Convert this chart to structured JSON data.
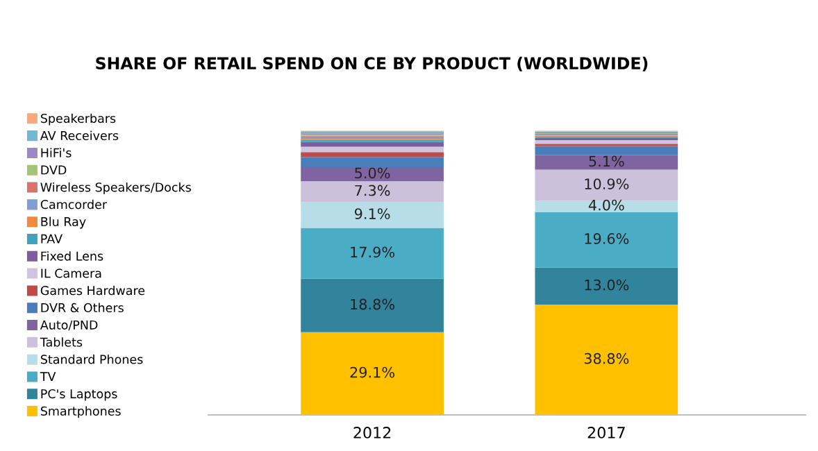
{
  "chart_data": {
    "type": "bar",
    "stacked": true,
    "title": "SHARE OF RETAIL SPEND ON CE BY PRODUCT (WORLDWIDE)",
    "categories": [
      "2012",
      "2017"
    ],
    "legend": "left",
    "grid": false,
    "series": [
      {
        "name": "Smartphones",
        "color": "#ffc000",
        "values": [
          29.1,
          38.8
        ],
        "value_labels": [
          "29.1%",
          "38.8%"
        ]
      },
      {
        "name": "PC's Laptops",
        "color": "#31849b",
        "values": [
          18.8,
          13.0
        ],
        "value_labels": [
          "18.8%",
          "13.0%"
        ]
      },
      {
        "name": "TV",
        "color": "#4bacc6",
        "values": [
          17.9,
          19.6
        ],
        "value_labels": [
          "17.9%",
          "19.6%"
        ]
      },
      {
        "name": "Standard Phones",
        "color": "#b7dee8",
        "values": [
          9.1,
          4.0
        ],
        "value_labels": [
          "9.1%",
          "4.0%"
        ]
      },
      {
        "name": "Tablets",
        "color": "#ccc1da",
        "values": [
          7.3,
          10.9
        ],
        "value_labels": [
          "7.3%",
          "10.9%"
        ]
      },
      {
        "name": "Auto/PND",
        "color": "#8064a2",
        "values": [
          5.0,
          5.1
        ],
        "value_labels": [
          "5.0%",
          "5.1%"
        ]
      },
      {
        "name": "DVR & Others",
        "color": "#4a7ebb",
        "values": [
          3.6,
          3.2
        ]
      },
      {
        "name": "Games Hardware",
        "color": "#be4b48",
        "values": [
          1.7,
          0.8
        ]
      },
      {
        "name": "IL Camera",
        "color": "#d0c4de",
        "values": [
          1.9,
          1.3
        ]
      },
      {
        "name": "Fixed Lens",
        "color": "#7e5ca0",
        "values": [
          1.6,
          0.8
        ]
      },
      {
        "name": "PAV",
        "color": "#3fa3bd",
        "values": [
          0.8,
          0.5
        ]
      },
      {
        "name": "Blu Ray",
        "color": "#f08a3c",
        "values": [
          0.6,
          0.3
        ]
      },
      {
        "name": "Camcorder",
        "color": "#7f9fd3",
        "values": [
          0.6,
          0.3
        ]
      },
      {
        "name": "Wireless Speakers/Docks",
        "color": "#d9726e",
        "values": [
          0.3,
          0.3
        ]
      },
      {
        "name": "DVD",
        "color": "#a5c279",
        "values": [
          0.3,
          0.2
        ]
      },
      {
        "name": "HiFi's",
        "color": "#9b88c4",
        "values": [
          0.5,
          0.3
        ]
      },
      {
        "name": "AV Receivers",
        "color": "#76b7d0",
        "values": [
          0.5,
          0.3
        ]
      },
      {
        "name": "Speakerbars",
        "color": "#f8a97a",
        "values": [
          0.4,
          0.3
        ]
      }
    ]
  }
}
